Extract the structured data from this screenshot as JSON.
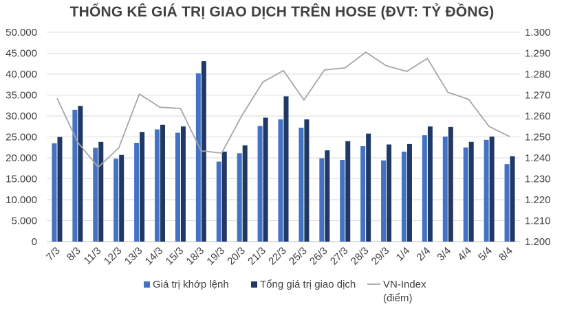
{
  "chart_data": {
    "type": "bar",
    "title": "THỐNG KÊ GIÁ TRỊ GIAO DỊCH TRÊN HOSE (ĐVT: TỶ ĐỒNG)",
    "categories": [
      "7/3",
      "8/3",
      "11/3",
      "12/3",
      "13/3",
      "14/3",
      "15/3",
      "18/3",
      "19/3",
      "20/3",
      "21/3",
      "22/3",
      "25/3",
      "26/3",
      "27/3",
      "28/3",
      "29/3",
      "1/4",
      "2/4",
      "3/4",
      "4/4",
      "5/4",
      "8/4"
    ],
    "ylim": [
      0,
      50000
    ],
    "y2lim": [
      1200,
      1300
    ],
    "y_ticks": [
      "0",
      "5.000",
      "10.000",
      "15.000",
      "20.000",
      "25.000",
      "30.000",
      "35.000",
      "40.000",
      "45.000",
      "50.000"
    ],
    "y2_ticks": [
      "1.200",
      "1.210",
      "1.220",
      "1.230",
      "1.240",
      "1.250",
      "1.260",
      "1.270",
      "1.280",
      "1.290",
      "1.300"
    ],
    "grid": true,
    "legend_position": "bottom",
    "series": [
      {
        "name": "Giá trị khớp lệnh",
        "type": "bar",
        "axis": "left",
        "color": "#4472C4",
        "values": [
          23500,
          31500,
          22400,
          19800,
          23600,
          26800,
          26000,
          40200,
          19100,
          21100,
          27600,
          29200,
          27200,
          19900,
          19500,
          22800,
          19400,
          21500,
          25400,
          25100,
          22500,
          24300,
          18500
        ]
      },
      {
        "name": "Tổng giá trị giao dịch",
        "type": "bar",
        "axis": "left",
        "color": "#203864",
        "values": [
          25000,
          32400,
          23800,
          20700,
          26200,
          27900,
          27500,
          43100,
          21500,
          23000,
          29600,
          34700,
          29200,
          21800,
          24000,
          25800,
          23200,
          23300,
          27500,
          27400,
          23800,
          25100,
          20400
        ]
      },
      {
        "name": "VN-Index (điểm)",
        "legend_lines": [
          "VN-Index",
          "(điểm)"
        ],
        "type": "line",
        "axis": "right",
        "color": "#A6A6A6",
        "values": [
          1268.5,
          1247.5,
          1235.5,
          1244.8,
          1270.5,
          1264.2,
          1263.6,
          1243.4,
          1242.3,
          1260.5,
          1276.2,
          1281.7,
          1267.7,
          1282.0,
          1283.0,
          1290.5,
          1284.0,
          1281.3,
          1287.5,
          1271.3,
          1268.0,
          1255.0,
          1250.2
        ]
      }
    ]
  }
}
